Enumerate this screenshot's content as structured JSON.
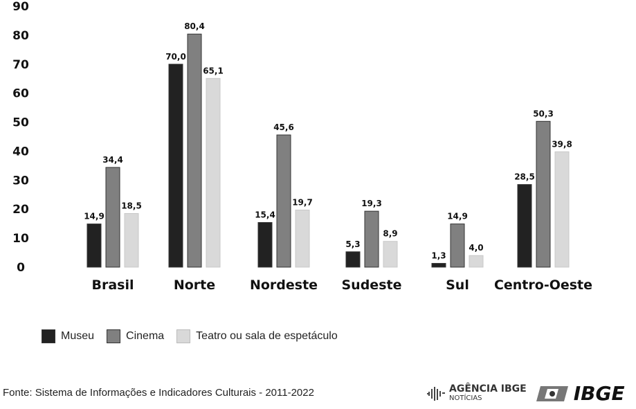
{
  "chart_data": {
    "type": "bar",
    "title": "",
    "xlabel": "",
    "ylabel": "",
    "ylim": [
      0,
      90
    ],
    "yticks": [
      0,
      10,
      20,
      30,
      40,
      50,
      60,
      70,
      80,
      90
    ],
    "grid": false,
    "legend_position": "bottom-left",
    "categories": [
      "Brasil",
      "Norte",
      "Nordeste",
      "Sudeste",
      "Sul",
      "Centro-Oeste"
    ],
    "series": [
      {
        "name": "Museu",
        "color": "#222222",
        "values": [
          14.9,
          70.0,
          15.4,
          5.3,
          1.3,
          28.5
        ],
        "labels": [
          "14,9",
          "70,0",
          "15,4",
          "5,3",
          "1,3",
          "28,5"
        ]
      },
      {
        "name": "Cinema",
        "color": "#808080",
        "values": [
          34.4,
          80.4,
          45.6,
          19.3,
          14.9,
          50.3
        ],
        "labels": [
          "34,4",
          "80,4",
          "45,6",
          "19,3",
          "14,9",
          "50,3"
        ]
      },
      {
        "name": "Teatro ou sala de espetáculo",
        "color": "#d9d9d9",
        "values": [
          18.5,
          65.1,
          19.7,
          8.9,
          4.0,
          39.8
        ],
        "labels": [
          "18,5",
          "65,1",
          "19,7",
          "8,9",
          "4,0",
          "39,8"
        ]
      }
    ]
  },
  "source": "Fonte: Sistema de Informações e Indicadores Culturais - 2011-2022",
  "logos": {
    "agencia": "AGÊNCIA IBGE",
    "agencia_sub": "NOTÍCIAS",
    "ibge": "IBGE"
  }
}
